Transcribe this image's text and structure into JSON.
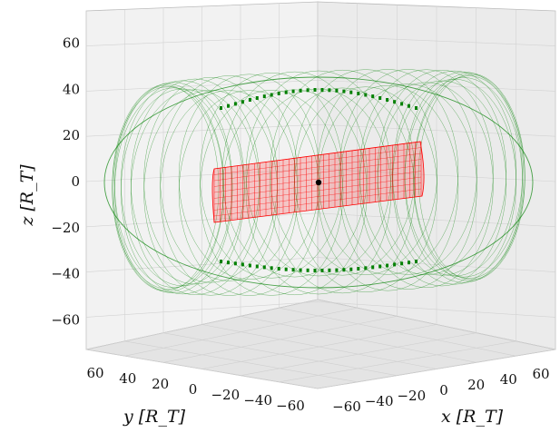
{
  "chart_data": {
    "type": "scatter",
    "projection": "3d",
    "xlabel": "x [R_T]",
    "ylabel": "y [R_T]",
    "zlabel": "z [R_T]",
    "xlim": [
      -70,
      70
    ],
    "ylim": [
      -70,
      70
    ],
    "zlim": [
      -70,
      70
    ],
    "x_ticks": [
      -60,
      -40,
      -20,
      0,
      20,
      40,
      60
    ],
    "y_ticks": [
      60,
      40,
      20,
      0,
      -20,
      -40,
      -60
    ],
    "z_ticks": [
      60,
      40,
      20,
      0,
      -20,
      -40,
      -60
    ],
    "grid": true,
    "series": [
      {
        "color": "#008000",
        "marker": "points",
        "outer_radius": 62,
        "tube_radius": 22,
        "center": [
          0,
          0,
          0
        ]
      },
      {
        "color": "#ff0000",
        "marker": "points",
        "radius": 15,
        "half_length": 42,
        "center": [
          0,
          0,
          0
        ]
      },
      {
        "color": "#000000",
        "marker": "dot",
        "center": [
          0,
          0,
          0
        ]
      }
    ]
  }
}
